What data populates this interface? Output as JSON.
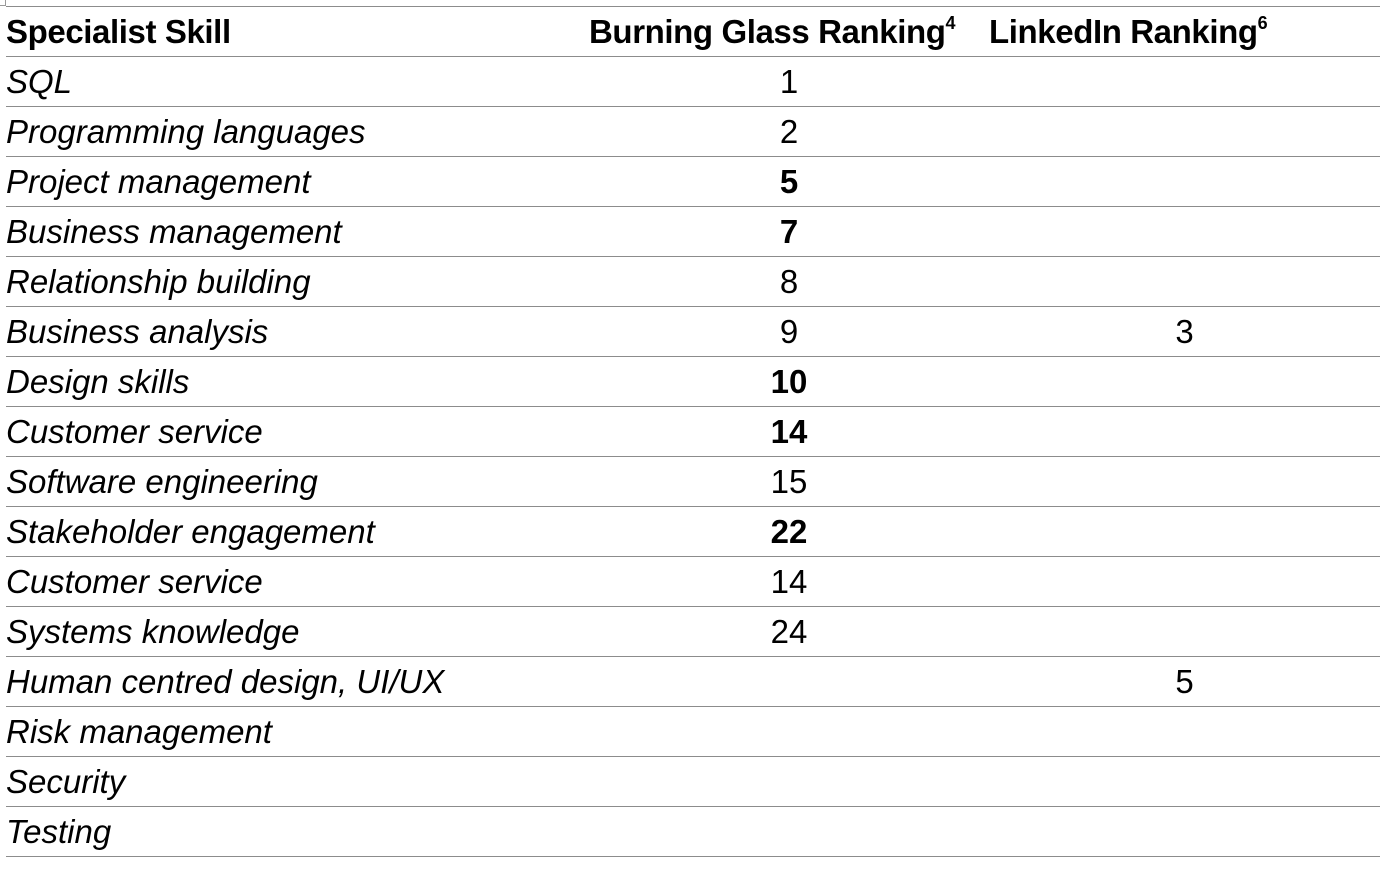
{
  "table": {
    "headers": {
      "skill": "Specialist Skill",
      "burning_glass": "Burning Glass Ranking",
      "burning_glass_note": "4",
      "linkedin": "LinkedIn Ranking",
      "linkedin_note": "6"
    },
    "rows": [
      {
        "skill": "SQL",
        "burning_glass": "1",
        "bg_bold": false,
        "linkedin": ""
      },
      {
        "skill": "Programming languages",
        "burning_glass": "2",
        "bg_bold": false,
        "linkedin": ""
      },
      {
        "skill": "Project management",
        "burning_glass": "5",
        "bg_bold": true,
        "linkedin": ""
      },
      {
        "skill": "Business management",
        "burning_glass": "7",
        "bg_bold": true,
        "linkedin": ""
      },
      {
        "skill": "Relationship building",
        "burning_glass": "8",
        "bg_bold": false,
        "linkedin": ""
      },
      {
        "skill": "Business analysis",
        "burning_glass": "9",
        "bg_bold": false,
        "linkedin": "3"
      },
      {
        "skill": "Design skills",
        "burning_glass": "10",
        "bg_bold": true,
        "linkedin": ""
      },
      {
        "skill": "Customer service",
        "burning_glass": "14",
        "bg_bold": true,
        "linkedin": ""
      },
      {
        "skill": "Software engineering",
        "burning_glass": "15",
        "bg_bold": false,
        "linkedin": ""
      },
      {
        "skill": "Stakeholder engagement",
        "burning_glass": "22",
        "bg_bold": true,
        "linkedin": ""
      },
      {
        "skill": "Customer service",
        "burning_glass": "14",
        "bg_bold": false,
        "linkedin": ""
      },
      {
        "skill": "Systems knowledge",
        "burning_glass": "24",
        "bg_bold": false,
        "linkedin": ""
      },
      {
        "skill": "Human centred design, UI/UX",
        "burning_glass": "",
        "bg_bold": false,
        "linkedin": "5"
      },
      {
        "skill": "Risk management",
        "burning_glass": "",
        "bg_bold": false,
        "linkedin": ""
      },
      {
        "skill": "Security",
        "burning_glass": "",
        "bg_bold": false,
        "linkedin": ""
      },
      {
        "skill": "Testing",
        "burning_glass": "",
        "bg_bold": false,
        "linkedin": ""
      }
    ]
  }
}
